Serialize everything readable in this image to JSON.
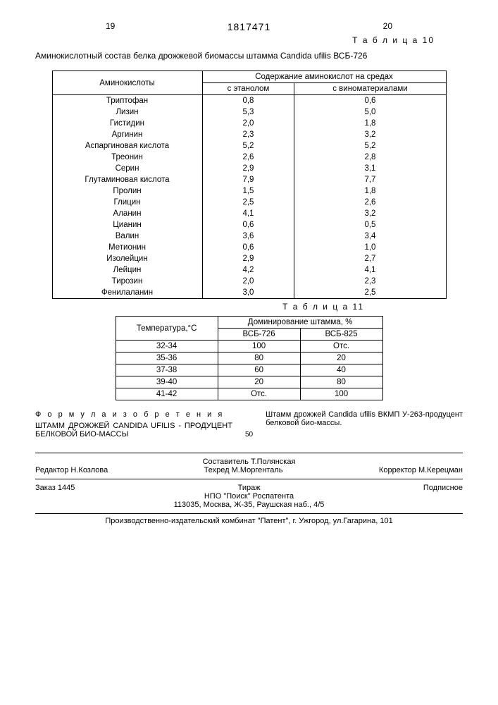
{
  "page_left": "19",
  "page_right": "20",
  "doc_number": "1817471",
  "table10_label": "Т а б л и ц а 10",
  "table10_caption": "Аминокислотный состав белка дрожжевой биомассы штамма Candida ufilis ВСБ-726",
  "t10": {
    "col0": "Аминокислоты",
    "colgroup": "Содержание аминокислот на средах",
    "col1": "с этанолом",
    "col2": "с виноматериалами",
    "rows": [
      {
        "n": "Триптофан",
        "a": "0,8",
        "b": "0,6"
      },
      {
        "n": "Лизин",
        "a": "5,3",
        "b": "5,0"
      },
      {
        "n": "Гистидин",
        "a": "2,0",
        "b": "1,8"
      },
      {
        "n": "Аргинин",
        "a": "2,3",
        "b": "3,2"
      },
      {
        "n": "Аспаргиновая кислота",
        "a": "5,2",
        "b": "5,2"
      },
      {
        "n": "Треонин",
        "a": "2,6",
        "b": "2,8"
      },
      {
        "n": "Серин",
        "a": "2,9",
        "b": "3,1"
      },
      {
        "n": "Глутаминовая кислота",
        "a": "7,9",
        "b": "7,7"
      },
      {
        "n": "Пролин",
        "a": "1,5",
        "b": "1,8"
      },
      {
        "n": "Глицин",
        "a": "2,5",
        "b": "2,6"
      },
      {
        "n": "Аланин",
        "a": "4,1",
        "b": "3,2"
      },
      {
        "n": "Цианин",
        "a": "0,6",
        "b": "0,5"
      },
      {
        "n": "Валин",
        "a": "3,6",
        "b": "3,4"
      },
      {
        "n": "Метионин",
        "a": "0,6",
        "b": "1,0"
      },
      {
        "n": "Изолейцин",
        "a": "2,9",
        "b": "2,7"
      },
      {
        "n": "Лейцин",
        "a": "4,2",
        "b": "4,1"
      },
      {
        "n": "Тирозин",
        "a": "2,0",
        "b": "2,3"
      },
      {
        "n": "Фенилаланин",
        "a": "3,0",
        "b": "2,5"
      }
    ]
  },
  "table11_label": "Т а б л и ц а 11",
  "t11": {
    "col0": "Температура,°С",
    "colgroup": "Доминирование штамма, %",
    "col1": "ВСБ-726",
    "col2": "ВСБ-825",
    "rows": [
      {
        "t": "32-34",
        "a": "100",
        "b": "Отс."
      },
      {
        "t": "35-36",
        "a": "80",
        "b": "20"
      },
      {
        "t": "37-38",
        "a": "60",
        "b": "40"
      },
      {
        "t": "39-40",
        "a": "20",
        "b": "80"
      },
      {
        "t": "41-42",
        "a": "Отс.",
        "b": "100"
      }
    ]
  },
  "formula": {
    "heading": "Ф о р м у л а   и з о б р е т е н и я",
    "left": "ШТАММ ДРОЖЖЕЙ CANDIDA UFILIS - ПРОДУЦЕНТ БЕЛКОВОЙ БИО-МАССЫ",
    "num50": "50",
    "right": "Штамм дрожжей Candida ufilis ВКМП У-263-продуцент белковой био-массы."
  },
  "credits": {
    "compiler": "Составитель Т.Полянская",
    "editor": "Редактор Н.Козлова",
    "tech": "Техред М.Моргенталь",
    "corrector": "Корректор М.Керецман"
  },
  "imprint": {
    "order": "Заказ 1445",
    "tirage": "Тираж",
    "sub": "Подписное",
    "org": "НПО \"Поиск\" Роспатента",
    "addr": "113035, Москва, Ж-35, Раушская наб., 4/5"
  },
  "bottom": "Производственно-издательский комбинат \"Патент\", г. Ужгород, ул.Гагарина, 101"
}
